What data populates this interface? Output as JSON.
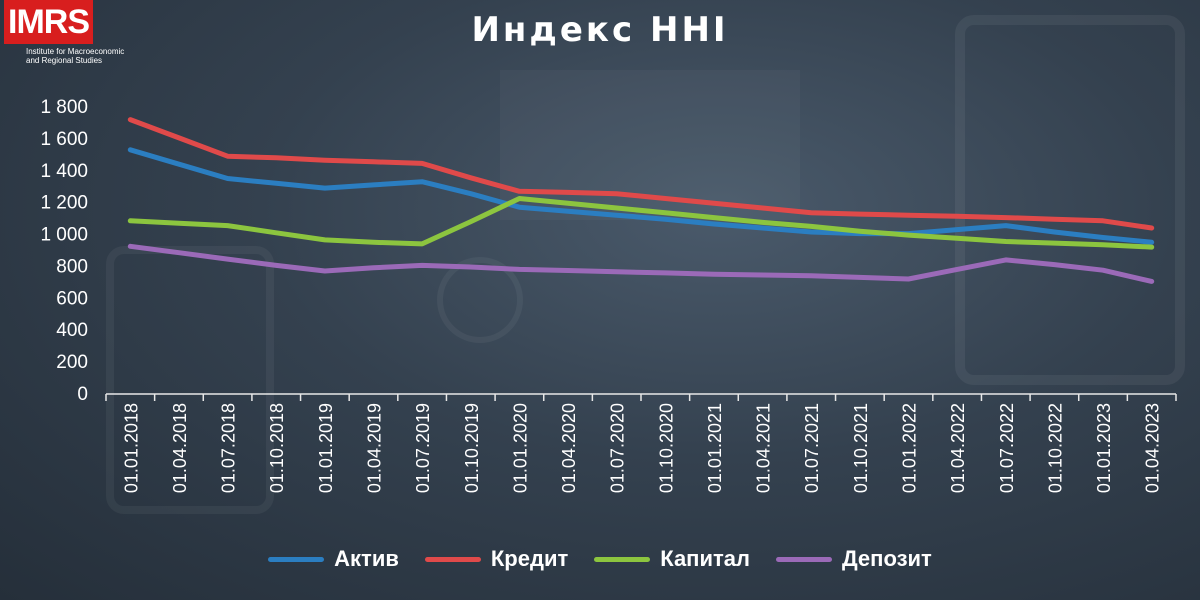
{
  "brand": {
    "logo_text": "IMRS",
    "logo_sub_1": "Institute for Macroeconomic",
    "logo_sub_2": "and Regional Studies"
  },
  "colors": {
    "Актив": "#2b7ec1",
    "Кредит": "#e04a4a",
    "Капитал": "#8cc53f",
    "Депозит": "#9b6ab8"
  },
  "chart_data": {
    "type": "line",
    "title": "Индекс HHI",
    "xlabel": "",
    "ylabel": "",
    "ylim": [
      0,
      1800
    ],
    "yticks": [
      "0",
      "200",
      "400",
      "600",
      "800",
      "1 000",
      "1 200",
      "1 400",
      "1 600",
      "1 800"
    ],
    "ytick_values": [
      0,
      200,
      400,
      600,
      800,
      1000,
      1200,
      1400,
      1600,
      1800
    ],
    "grid": false,
    "legend_position": "bottom",
    "categories": [
      "01.01.2018",
      "01.04.2018",
      "01.07.2018",
      "01.10.2018",
      "01.01.2019",
      "01.04.2019",
      "01.07.2019",
      "01.10.2019",
      "01.01.2020",
      "01.04.2020",
      "01.07.2020",
      "01.10.2020",
      "01.01.2021",
      "01.04.2021",
      "01.07.2021",
      "01.10.2021",
      "01.01.2022",
      "01.04.2022",
      "01.07.2022",
      "01.10.2022",
      "01.01.2023",
      "01.04.2023"
    ],
    "series": [
      {
        "name": "Актив",
        "values": [
          1525,
          1435,
          1345,
          1315,
          1285,
          1305,
          1325,
          1250,
          1165,
          1140,
          1115,
          1090,
          1060,
          1035,
          1010,
          1000,
          1000,
          1025,
          1050,
          1010,
          975,
          945
        ]
      },
      {
        "name": "Кредит",
        "values": [
          1715,
          1600,
          1485,
          1475,
          1460,
          1450,
          1440,
          1350,
          1265,
          1258,
          1250,
          1220,
          1190,
          1160,
          1130,
          1122,
          1115,
          1108,
          1100,
          1090,
          1080,
          1035
        ]
      },
      {
        "name": "Капитал",
        "values": [
          1080,
          1065,
          1050,
          1005,
          960,
          945,
          935,
          1075,
          1220,
          1190,
          1160,
          1130,
          1100,
          1070,
          1045,
          1015,
          990,
          970,
          950,
          940,
          930,
          915
        ]
      },
      {
        "name": "Депозит",
        "values": [
          920,
          880,
          840,
          800,
          765,
          785,
          800,
          790,
          775,
          768,
          760,
          753,
          745,
          740,
          735,
          725,
          715,
          775,
          835,
          805,
          770,
          700
        ]
      }
    ]
  }
}
